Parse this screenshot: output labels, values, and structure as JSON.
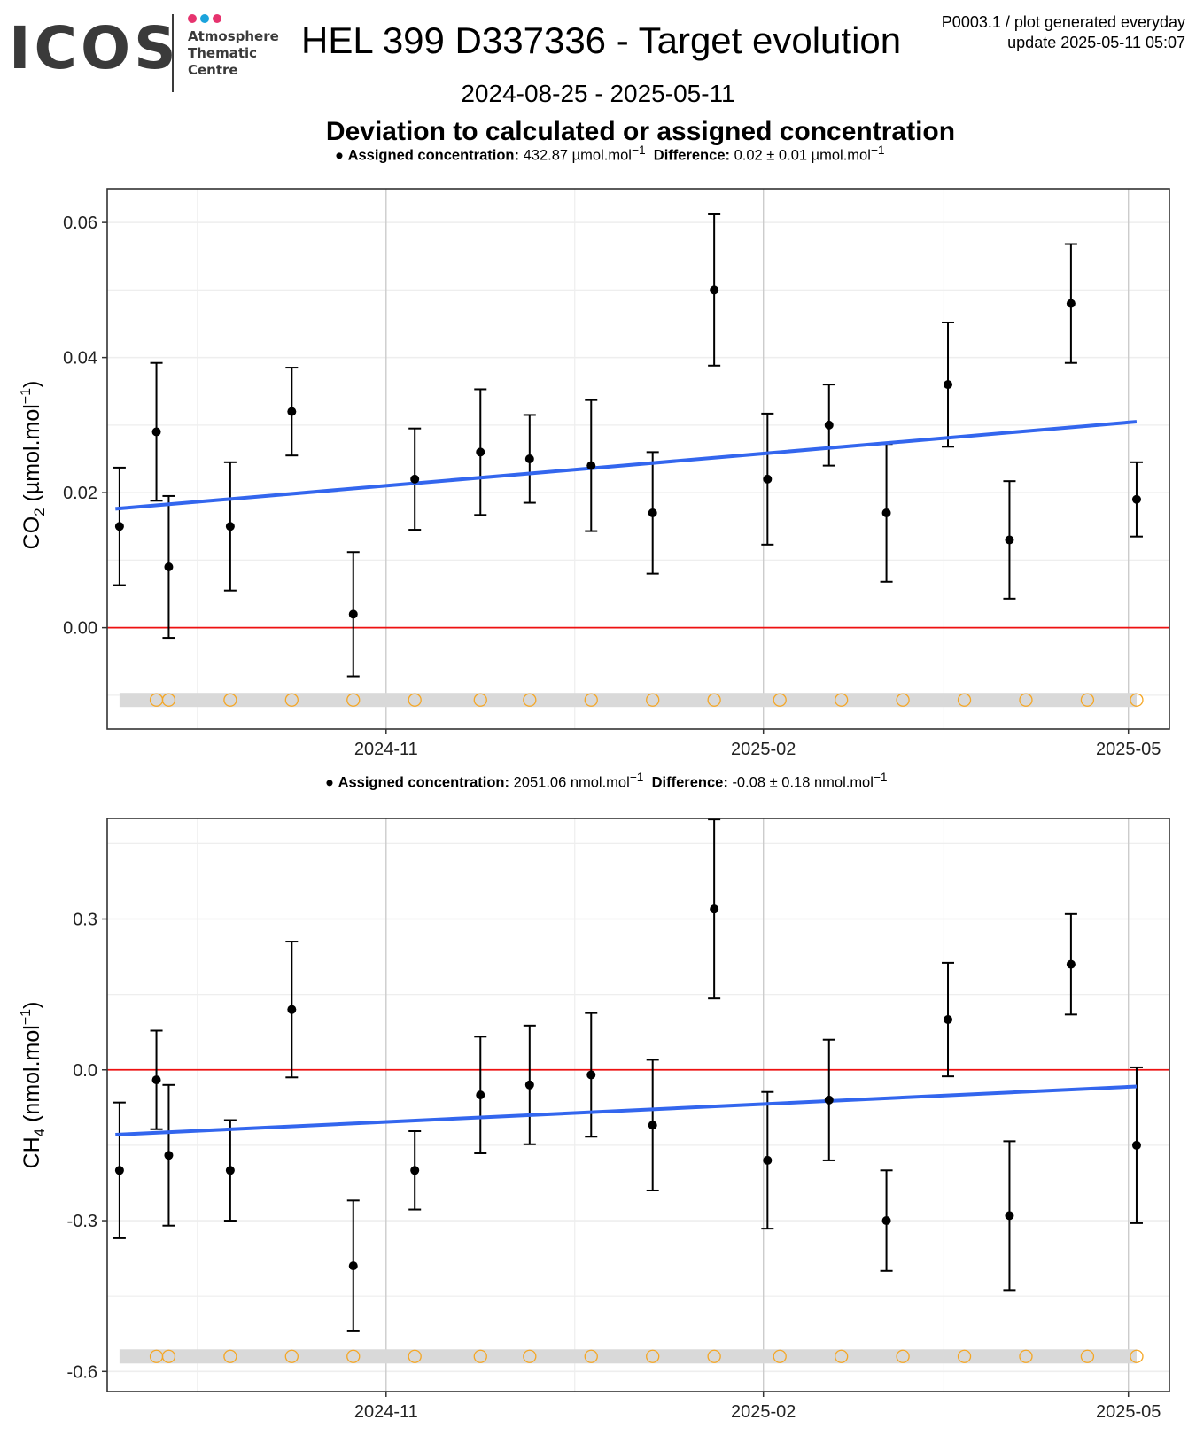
{
  "header": {
    "logo_text": "ICOS",
    "logo_sub": [
      "Atmosphere",
      "Thematic",
      "Centre"
    ],
    "logo_dot_colors": [
      "#e6336e",
      "#1ba3dc",
      "#e6336e"
    ],
    "title": "HEL 399 D337336 - Target evolution",
    "corner_line1": "P0003.1 / plot generated everyday",
    "corner_line2": "update  2025-05-11 05:07",
    "date_range": "2024-08-25 - 2025-05-11",
    "subtitle": "Deviation to calculated or assigned concentration"
  },
  "colors": {
    "trend": "#3366ee",
    "zero_line": "#ee1111",
    "marker": "#f5a623",
    "band": "#d9d9d9",
    "grid_major": "#cccccc",
    "grid_minor": "#eeeeee"
  },
  "chart_data": [
    {
      "type": "scatter",
      "gas": "CO2",
      "caption": {
        "assigned_label": "Assigned concentration:",
        "assigned_value": "432.87 µmol.mol",
        "difference_label": "Difference:",
        "difference_value": "0.02 ± 0.01 µmol.mol",
        "unit_exp": "−1"
      },
      "ylabel_main": "CO",
      "ylabel_sub": "2",
      "ylabel_unit": " (µmol.mol",
      "ylabel_exp": "−1",
      "ylabel_close": ")",
      "ylim": [
        -0.015,
        0.065
      ],
      "yticks": [
        0.0,
        0.02,
        0.04,
        0.06
      ],
      "ytick_labels": [
        "0.00",
        "0.02",
        "0.04",
        "0.06"
      ],
      "xlim": [
        "2024-08-25",
        "2025-05-11"
      ],
      "xticks": [
        "2024-11-01",
        "2025-02-01",
        "2025-05-01"
      ],
      "xtick_labels": [
        "2024-11",
        "2025-02",
        "2025-05"
      ],
      "points": [
        {
          "date": "2024-08-28",
          "y": 0.015,
          "err": 0.0087
        },
        {
          "date": "2024-09-06",
          "y": 0.029,
          "err": 0.0102
        },
        {
          "date": "2024-09-09",
          "y": 0.009,
          "err": 0.0105
        },
        {
          "date": "2024-09-24",
          "y": 0.015,
          "err": 0.0095
        },
        {
          "date": "2024-10-09",
          "y": 0.032,
          "err": 0.0065
        },
        {
          "date": "2024-10-24",
          "y": 0.002,
          "err": 0.0092
        },
        {
          "date": "2024-11-08",
          "y": 0.022,
          "err": 0.0075
        },
        {
          "date": "2024-11-24",
          "y": 0.026,
          "err": 0.0093
        },
        {
          "date": "2024-12-06",
          "y": 0.025,
          "err": 0.0065
        },
        {
          "date": "2024-12-21",
          "y": 0.024,
          "err": 0.0097
        },
        {
          "date": "2025-01-05",
          "y": 0.017,
          "err": 0.009
        },
        {
          "date": "2025-01-20",
          "y": 0.05,
          "err": 0.0112
        },
        {
          "date": "2025-02-02",
          "y": 0.022,
          "err": 0.0097
        },
        {
          "date": "2025-02-17",
          "y": 0.03,
          "err": 0.006
        },
        {
          "date": "2025-03-03",
          "y": 0.017,
          "err": 0.0102
        },
        {
          "date": "2025-03-18",
          "y": 0.036,
          "err": 0.0092
        },
        {
          "date": "2025-04-02",
          "y": 0.013,
          "err": 0.0087
        },
        {
          "date": "2025-04-17",
          "y": 0.048,
          "err": 0.0088
        },
        {
          "date": "2025-05-03",
          "y": 0.019,
          "err": 0.0055
        }
      ],
      "trend": {
        "start": [
          "2024-08-27",
          0.0176
        ],
        "end": [
          "2025-05-03",
          0.0305
        ]
      },
      "zero_line": 0.0,
      "band_y": -0.0107,
      "markers": [
        "2024-09-06",
        "2024-09-09",
        "2024-09-24",
        "2024-10-09",
        "2024-10-24",
        "2024-11-08",
        "2024-11-24",
        "2024-12-06",
        "2024-12-21",
        "2025-01-05",
        "2025-01-20",
        "2025-02-05",
        "2025-02-20",
        "2025-03-07",
        "2025-03-22",
        "2025-04-06",
        "2025-04-21",
        "2025-05-03"
      ]
    },
    {
      "type": "scatter",
      "gas": "CH4",
      "caption": {
        "assigned_label": "Assigned concentration:",
        "assigned_value": "2051.06 nmol.mol",
        "difference_label": "Difference:",
        "difference_value": "-0.08 ± 0.18 nmol.mol",
        "unit_exp": "−1"
      },
      "ylabel_main": "CH",
      "ylabel_sub": "4",
      "ylabel_unit": " (nmol.mol",
      "ylabel_exp": "−1",
      "ylabel_close": ")",
      "ylim": [
        -0.64,
        0.5
      ],
      "yticks": [
        -0.6,
        -0.3,
        0.0,
        0.3
      ],
      "ytick_labels": [
        "-0.6",
        "-0.3",
        "0.0",
        "0.3"
      ],
      "xlim": [
        "2024-08-25",
        "2025-05-11"
      ],
      "xticks": [
        "2024-11-01",
        "2025-02-01",
        "2025-05-01"
      ],
      "xtick_labels": [
        "2024-11",
        "2025-02",
        "2025-05"
      ],
      "points": [
        {
          "date": "2024-08-28",
          "y": -0.2,
          "err": 0.135
        },
        {
          "date": "2024-09-06",
          "y": -0.02,
          "err": 0.098
        },
        {
          "date": "2024-09-09",
          "y": -0.17,
          "err": 0.14
        },
        {
          "date": "2024-09-24",
          "y": -0.2,
          "err": 0.1
        },
        {
          "date": "2024-10-09",
          "y": 0.12,
          "err": 0.135
        },
        {
          "date": "2024-10-24",
          "y": -0.39,
          "err": 0.13
        },
        {
          "date": "2024-11-08",
          "y": -0.2,
          "err": 0.078
        },
        {
          "date": "2024-11-24",
          "y": -0.05,
          "err": 0.116
        },
        {
          "date": "2024-12-06",
          "y": -0.03,
          "err": 0.118
        },
        {
          "date": "2024-12-21",
          "y": -0.01,
          "err": 0.123
        },
        {
          "date": "2025-01-05",
          "y": -0.11,
          "err": 0.13
        },
        {
          "date": "2025-01-20",
          "y": 0.32,
          "err": 0.178
        },
        {
          "date": "2025-02-02",
          "y": -0.18,
          "err": 0.136
        },
        {
          "date": "2025-02-17",
          "y": -0.06,
          "err": 0.12
        },
        {
          "date": "2025-03-03",
          "y": -0.3,
          "err": 0.1
        },
        {
          "date": "2025-03-18",
          "y": 0.1,
          "err": 0.113
        },
        {
          "date": "2025-04-02",
          "y": -0.29,
          "err": 0.148
        },
        {
          "date": "2025-04-17",
          "y": 0.21,
          "err": 0.1
        },
        {
          "date": "2025-05-03",
          "y": -0.15,
          "err": 0.155
        }
      ],
      "trend": {
        "start": [
          "2024-08-27",
          -0.129
        ],
        "end": [
          "2025-05-03",
          -0.033
        ]
      },
      "zero_line": 0.0,
      "band_y": -0.57,
      "markers": [
        "2024-09-06",
        "2024-09-09",
        "2024-09-24",
        "2024-10-09",
        "2024-10-24",
        "2024-11-08",
        "2024-11-24",
        "2024-12-06",
        "2024-12-21",
        "2025-01-05",
        "2025-01-20",
        "2025-02-05",
        "2025-02-20",
        "2025-03-07",
        "2025-03-22",
        "2025-04-06",
        "2025-04-21",
        "2025-05-03"
      ]
    }
  ]
}
